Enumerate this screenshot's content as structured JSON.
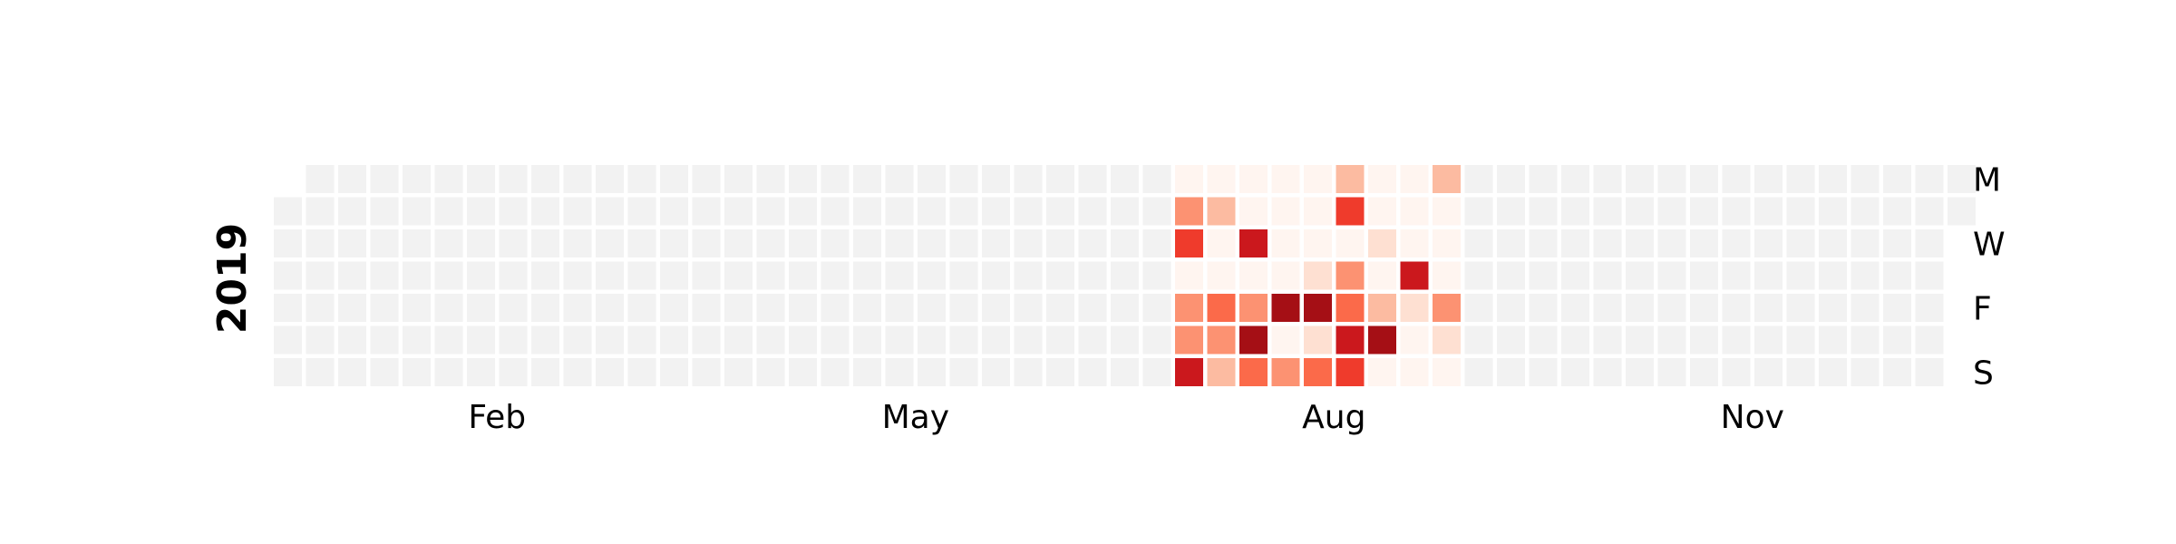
{
  "chart_data": {
    "type": "heatmap",
    "title": "",
    "year_label": "2019",
    "row_labels": [
      "M",
      "",
      "W",
      "",
      "F",
      "",
      "S"
    ],
    "month_labels": [
      {
        "label": "Feb",
        "week": 6.5
      },
      {
        "label": "May",
        "week": 19.5
      },
      {
        "label": "Aug",
        "week": 32.5
      },
      {
        "label": "Nov",
        "week": 45.5
      }
    ],
    "colors": {
      "empty": "#f2f2f2",
      "scale": [
        "#fff5f0",
        "#fee0d2",
        "#fcbba1",
        "#fc9272",
        "#fb6a4a",
        "#ef3b2c",
        "#cb181d",
        "#a50f15",
        "#67000d"
      ]
    },
    "rows": 7,
    "weeks": 53,
    "first_week_start_row": 1,
    "last_week_end_row": 1,
    "data_range": {
      "start_week": 28,
      "end_week": 36
    },
    "week_levels": [
      [
        0,
        3,
        5,
        0,
        3,
        3,
        6
      ],
      [
        0,
        2,
        0,
        0,
        4,
        3,
        2
      ],
      [
        0,
        0,
        6,
        0,
        3,
        7,
        4
      ],
      [
        0,
        0,
        0,
        0,
        7,
        0,
        3
      ],
      [
        0,
        0,
        0,
        1,
        7,
        1,
        4
      ],
      [
        2,
        5,
        0,
        3,
        4,
        6,
        5
      ],
      [
        0,
        0,
        1,
        0,
        2,
        7,
        0
      ],
      [
        0,
        0,
        0,
        6,
        1,
        0,
        0
      ],
      [
        2,
        0,
        0,
        0,
        3,
        1,
        0
      ]
    ]
  }
}
